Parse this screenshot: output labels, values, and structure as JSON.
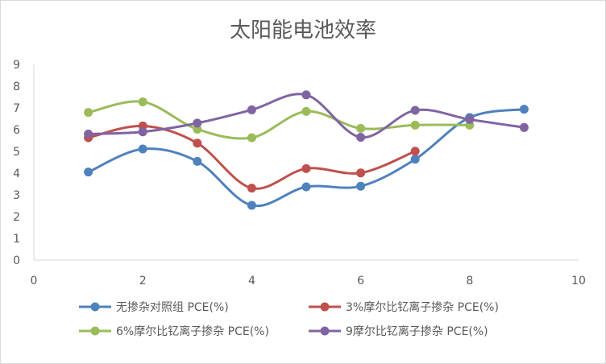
{
  "chart_data": {
    "type": "line",
    "title": "太阳能电池效率",
    "xlabel": "",
    "ylabel": "",
    "xlim": [
      0,
      10
    ],
    "ylim": [
      0,
      9
    ],
    "xticks": [
      "0",
      "2",
      "4",
      "6",
      "8",
      "10"
    ],
    "yticks": [
      "0",
      "1",
      "2",
      "3",
      "4",
      "5",
      "6",
      "7",
      "8",
      "9"
    ],
    "grid": false,
    "smooth": true,
    "legend_position": "bottom",
    "series": [
      {
        "name": "无掺杂对照组 PCE(%)",
        "color": "#4F81BD",
        "x": [
          1,
          2,
          3,
          4,
          5,
          6,
          7,
          8,
          9
        ],
        "values": [
          4.05,
          5.11,
          4.54,
          2.52,
          3.37,
          3.4,
          4.64,
          6.56,
          6.94
        ]
      },
      {
        "name": "3%摩尔比钇离子掺杂 PCE(%)",
        "color": "#C0504D",
        "x": [
          1,
          2,
          3,
          4,
          5,
          6,
          7
        ],
        "values": [
          5.63,
          6.17,
          5.38,
          3.31,
          4.21,
          4.01,
          5.01
        ]
      },
      {
        "name": "6%摩尔比钇离子掺杂 PCE(%)",
        "color": "#9BBB59",
        "x": [
          1,
          2,
          3,
          4,
          5,
          6,
          7,
          8
        ],
        "values": [
          6.79,
          7.28,
          6.02,
          5.63,
          6.84,
          6.06,
          6.21,
          6.21
        ]
      },
      {
        "name": "9摩尔比钇离子掺杂 PCE(%)",
        "color": "#8064A2",
        "x": [
          1,
          2,
          3,
          4,
          5,
          6,
          7,
          8,
          9
        ],
        "values": [
          5.8,
          5.9,
          6.3,
          6.91,
          7.6,
          5.65,
          6.89,
          6.47,
          6.1
        ]
      }
    ]
  }
}
